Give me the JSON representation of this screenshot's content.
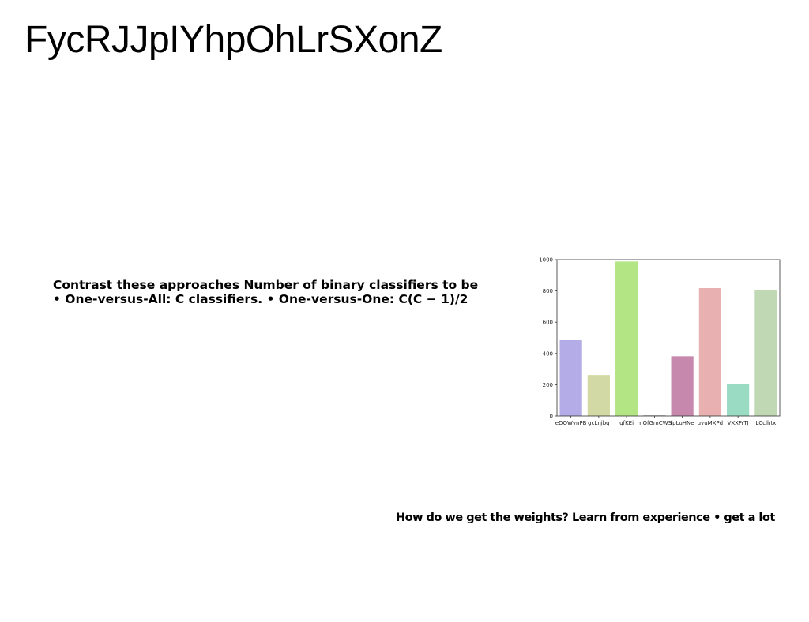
{
  "slide": {
    "title": "FycRJJpIYhpOhLrSXonZ",
    "body_lines": [
      "Contrast these approaches Number of binary classifiers to be",
      "• One-versus-All: C classifiers. • One-versus-One: C(C − 1)/2"
    ],
    "caption": "How do we get the weights? Learn from experience • get a lot"
  },
  "chart_data": {
    "type": "bar",
    "categories": [
      "eDQWvnPB",
      "gcLnjbq",
      "qfKEi",
      "mQfGmCWS",
      "fpLuHNe",
      "uvuMXPd",
      "VXXFrTJ",
      "LCclhtx"
    ],
    "values": [
      485,
      262,
      988,
      5,
      382,
      818,
      205,
      807
    ],
    "colors": [
      "#b3ace6",
      "#d3d9a4",
      "#b4e585",
      "#c5c5c5",
      "#c788ad",
      "#e8b0b0",
      "#9adcc3",
      "#c0d9b4"
    ],
    "ylim": [
      0,
      1000
    ],
    "yticks": [
      0,
      200,
      400,
      600,
      800,
      1000
    ],
    "grid": false,
    "legend": "none"
  }
}
